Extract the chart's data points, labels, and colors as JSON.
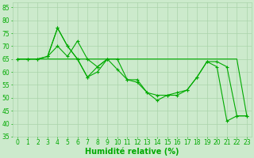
{
  "line1": {
    "x": [
      0,
      1,
      2,
      3,
      4,
      5,
      6,
      7,
      8,
      9,
      10,
      11,
      12,
      13,
      14,
      15,
      16,
      17,
      18,
      19,
      20,
      21,
      22,
      23
    ],
    "y": [
      65,
      65,
      65,
      65,
      65,
      65,
      65,
      65,
      65,
      65,
      65,
      65,
      65,
      65,
      65,
      65,
      65,
      65,
      65,
      65,
      65,
      65,
      65,
      43
    ]
  },
  "line2": {
    "x": [
      0,
      1,
      2,
      3,
      4,
      5,
      6,
      7,
      8,
      9,
      10,
      11,
      12,
      13,
      14,
      15,
      16,
      17,
      18,
      19,
      20,
      21,
      22,
      23
    ],
    "y": [
      65,
      65,
      65,
      66,
      70,
      66,
      72,
      65,
      62,
      65,
      65,
      57,
      56,
      52,
      49,
      51,
      51,
      53,
      58,
      64,
      62,
      41,
      43,
      43
    ]
  },
  "line3": {
    "x": [
      0,
      1,
      2,
      3,
      4,
      5,
      6,
      7,
      8,
      9,
      10,
      11,
      12,
      13,
      14,
      15,
      16,
      17,
      18,
      19,
      20,
      21,
      22,
      23
    ],
    "y": [
      65,
      65,
      65,
      66,
      77,
      70,
      65,
      58,
      60,
      65,
      61,
      57,
      57,
      52,
      51,
      51,
      52,
      53,
      58,
      64,
      64,
      62,
      43,
      43
    ]
  },
  "line4": {
    "x": [
      3,
      4,
      5,
      6,
      7,
      8,
      9
    ],
    "y": [
      66,
      77,
      70,
      65,
      58,
      62,
      65
    ]
  },
  "xlabel": "Humidité relative (%)",
  "xlim": [
    -0.5,
    23.5
  ],
  "ylim": [
    35,
    87
  ],
  "yticks": [
    35,
    40,
    45,
    50,
    55,
    60,
    65,
    70,
    75,
    80,
    85
  ],
  "xticks": [
    0,
    1,
    2,
    3,
    4,
    5,
    6,
    7,
    8,
    9,
    10,
    11,
    12,
    13,
    14,
    15,
    16,
    17,
    18,
    19,
    20,
    21,
    22,
    23
  ],
  "grid_color": "#aad4aa",
  "bg_color": "#cceacc",
  "line_color": "#00aa00",
  "xlabel_fontsize": 7,
  "tick_fontsize": 5.5
}
